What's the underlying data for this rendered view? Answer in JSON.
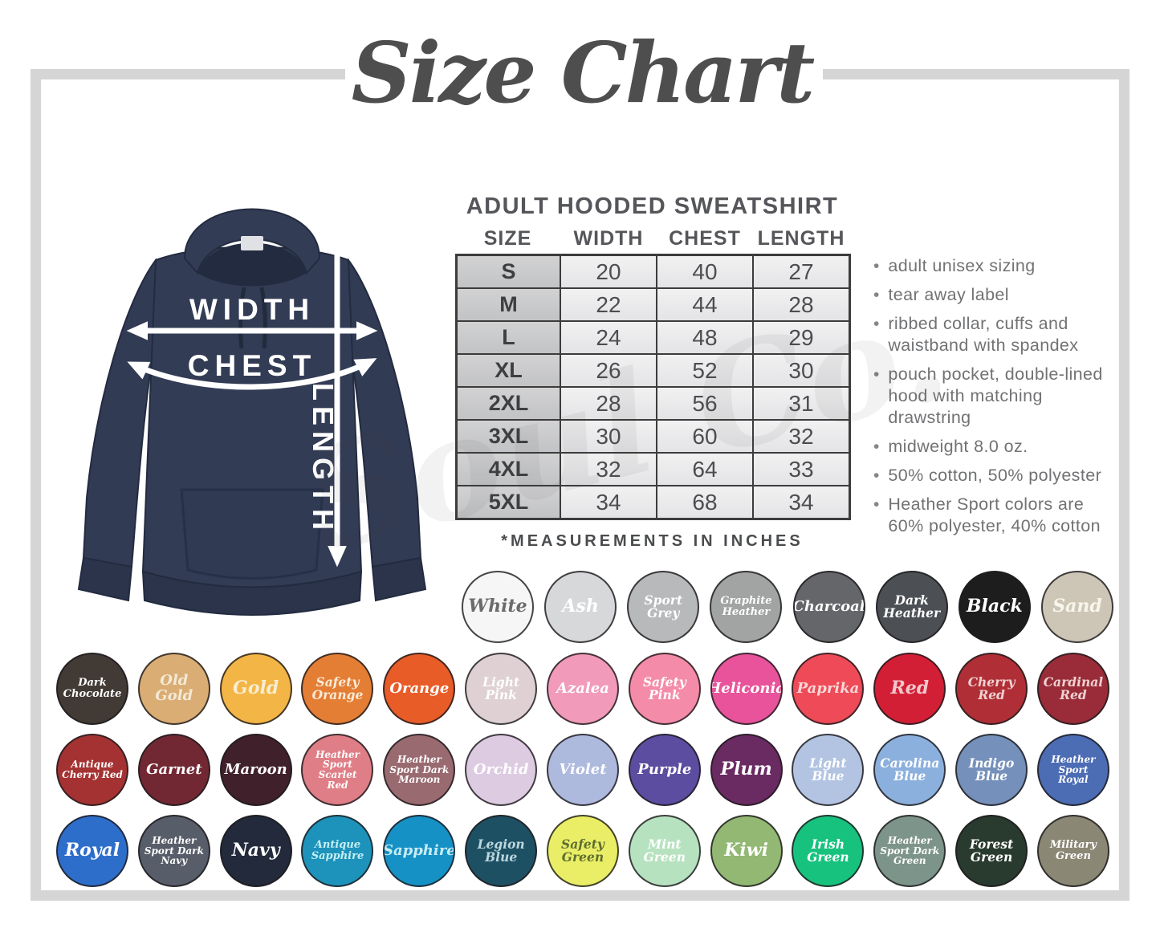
{
  "title": "Size Chart",
  "watermark": "Soul Co.",
  "frame_color": "#d5d5d5",
  "hoodie_color": "#323b54",
  "diagram": {
    "width_label": "WIDTH",
    "chest_label": "CHEST",
    "length_label": "LENGTH"
  },
  "product": {
    "heading": "ADULT HOODED SWEATSHIRT",
    "footnote": "*MEASUREMENTS IN INCHES"
  },
  "size_table": {
    "columns": [
      "SIZE",
      "WIDTH",
      "CHEST",
      "LENGTH"
    ],
    "rows": [
      [
        "S",
        "20",
        "40",
        "27"
      ],
      [
        "M",
        "22",
        "44",
        "28"
      ],
      [
        "L",
        "24",
        "48",
        "29"
      ],
      [
        "XL",
        "26",
        "52",
        "30"
      ],
      [
        "2XL",
        "28",
        "56",
        "31"
      ],
      [
        "3XL",
        "30",
        "60",
        "32"
      ],
      [
        "4XL",
        "32",
        "64",
        "33"
      ],
      [
        "5XL",
        "34",
        "68",
        "34"
      ]
    ]
  },
  "features": [
    "adult unisex sizing",
    "tear away label",
    "ribbed collar, cuffs and waistband with spandex",
    "pouch pocket, double-lined hood with matching drawstring",
    "midweight 8.0 oz.",
    "50% cotton, 50% polyester",
    "Heather Sport colors are 60% polyester, 40% cotton"
  ],
  "swatch_rows": [
    [
      {
        "name": "White",
        "bg": "#f6f6f6",
        "fg": "#6b6b6b"
      },
      {
        "name": "Ash",
        "bg": "#d6d8da",
        "fg": "#ffffff"
      },
      {
        "name": "Sport Grey",
        "bg": "#b7b9bb",
        "fg": "#ffffff"
      },
      {
        "name": "Graphite Heather",
        "bg": "#a2a4a4",
        "fg": "#ffffff"
      },
      {
        "name": "Charcoal",
        "bg": "#656669",
        "fg": "#ffffff"
      },
      {
        "name": "Dark Heather",
        "bg": "#4c4f54",
        "fg": "#ffffff"
      },
      {
        "name": "Black",
        "bg": "#1d1d1d",
        "fg": "#ffffff"
      },
      {
        "name": "Sand",
        "bg": "#cdc6b6",
        "fg": "#f8f5ec"
      }
    ],
    [
      {
        "name": "Dark Chocolate",
        "bg": "#423a35",
        "fg": "#ffffff"
      },
      {
        "name": "Old Gold",
        "bg": "#d9ad74",
        "fg": "#f4e9d5"
      },
      {
        "name": "Gold",
        "bg": "#f3b545",
        "fg": "#f8edd3"
      },
      {
        "name": "Safety Orange",
        "bg": "#e47e35",
        "fg": "#f9ebd7"
      },
      {
        "name": "Orange",
        "bg": "#e85c27",
        "fg": "#ffffff"
      },
      {
        "name": "Light Pink",
        "bg": "#dfd0d4",
        "fg": "#ffffff"
      },
      {
        "name": "Azalea",
        "bg": "#f29ab9",
        "fg": "#ffffff"
      },
      {
        "name": "Safety Pink",
        "bg": "#f48ba8",
        "fg": "#ffffff"
      },
      {
        "name": "Heliconia",
        "bg": "#e8539b",
        "fg": "#ffffff"
      },
      {
        "name": "Paprika",
        "bg": "#ee4a57",
        "fg": "#fad7d7"
      },
      {
        "name": "Red",
        "bg": "#d31f35",
        "fg": "#f2c8cc"
      },
      {
        "name": "Cherry Red",
        "bg": "#b02f36",
        "fg": "#f0d2d2"
      },
      {
        "name": "Cardinal Red",
        "bg": "#992c38",
        "fg": "#f0d2d2"
      }
    ],
    [
      {
        "name": "Antique Cherry Red",
        "bg": "#a53232",
        "fg": "#ffffff"
      },
      {
        "name": "Garnet",
        "bg": "#722833",
        "fg": "#ffffff"
      },
      {
        "name": "Maroon",
        "bg": "#40202b",
        "fg": "#ffffff"
      },
      {
        "name": "Heather Sport Scarlet Red",
        "bg": "#df7e86",
        "fg": "#ffffff"
      },
      {
        "name": "Heather Sport Dark Maroon",
        "bg": "#996a70",
        "fg": "#ffffff"
      },
      {
        "name": "Orchid",
        "bg": "#ddcbe2",
        "fg": "#ffffff"
      },
      {
        "name": "Violet",
        "bg": "#aeb9de",
        "fg": "#ffffff"
      },
      {
        "name": "Purple",
        "bg": "#5c4da0",
        "fg": "#ffffff"
      },
      {
        "name": "Plum",
        "bg": "#6a2a62",
        "fg": "#ffffff"
      },
      {
        "name": "Light Blue",
        "bg": "#b3c4e2",
        "fg": "#ffffff"
      },
      {
        "name": "Carolina Blue",
        "bg": "#8cb0dd",
        "fg": "#ffffff"
      },
      {
        "name": "Indigo Blue",
        "bg": "#7590ba",
        "fg": "#ffffff"
      },
      {
        "name": "Heather Sport Royal",
        "bg": "#4c6cb4",
        "fg": "#ffffff"
      }
    ],
    [
      {
        "name": "Royal",
        "bg": "#2e6ecb",
        "fg": "#ffffff"
      },
      {
        "name": "Heather Sport Dark Navy",
        "bg": "#585d6a",
        "fg": "#ffffff"
      },
      {
        "name": "Navy",
        "bg": "#222a3b",
        "fg": "#ffffff"
      },
      {
        "name": "Antique Sapphire",
        "bg": "#1d93bb",
        "fg": "#c5eef2"
      },
      {
        "name": "Sapphire",
        "bg": "#1591c6",
        "fg": "#c8ecf4"
      },
      {
        "name": "Legion Blue",
        "bg": "#1e5064",
        "fg": "#bcd8de"
      },
      {
        "name": "Safety Green",
        "bg": "#e9ee66",
        "fg": "#5f6e31"
      },
      {
        "name": "Mint Green",
        "bg": "#b7e2c0",
        "fg": "#ffffff"
      },
      {
        "name": "Kiwi",
        "bg": "#92b873",
        "fg": "#ffffff"
      },
      {
        "name": "Irish Green",
        "bg": "#17c27e",
        "fg": "#ffffff"
      },
      {
        "name": "Heather Sport Dark Green",
        "bg": "#7d948a",
        "fg": "#ffffff"
      },
      {
        "name": "Forest Green",
        "bg": "#293a2f",
        "fg": "#ffffff"
      },
      {
        "name": "Military Green",
        "bg": "#8b8775",
        "fg": "#ffffff"
      }
    ]
  ]
}
